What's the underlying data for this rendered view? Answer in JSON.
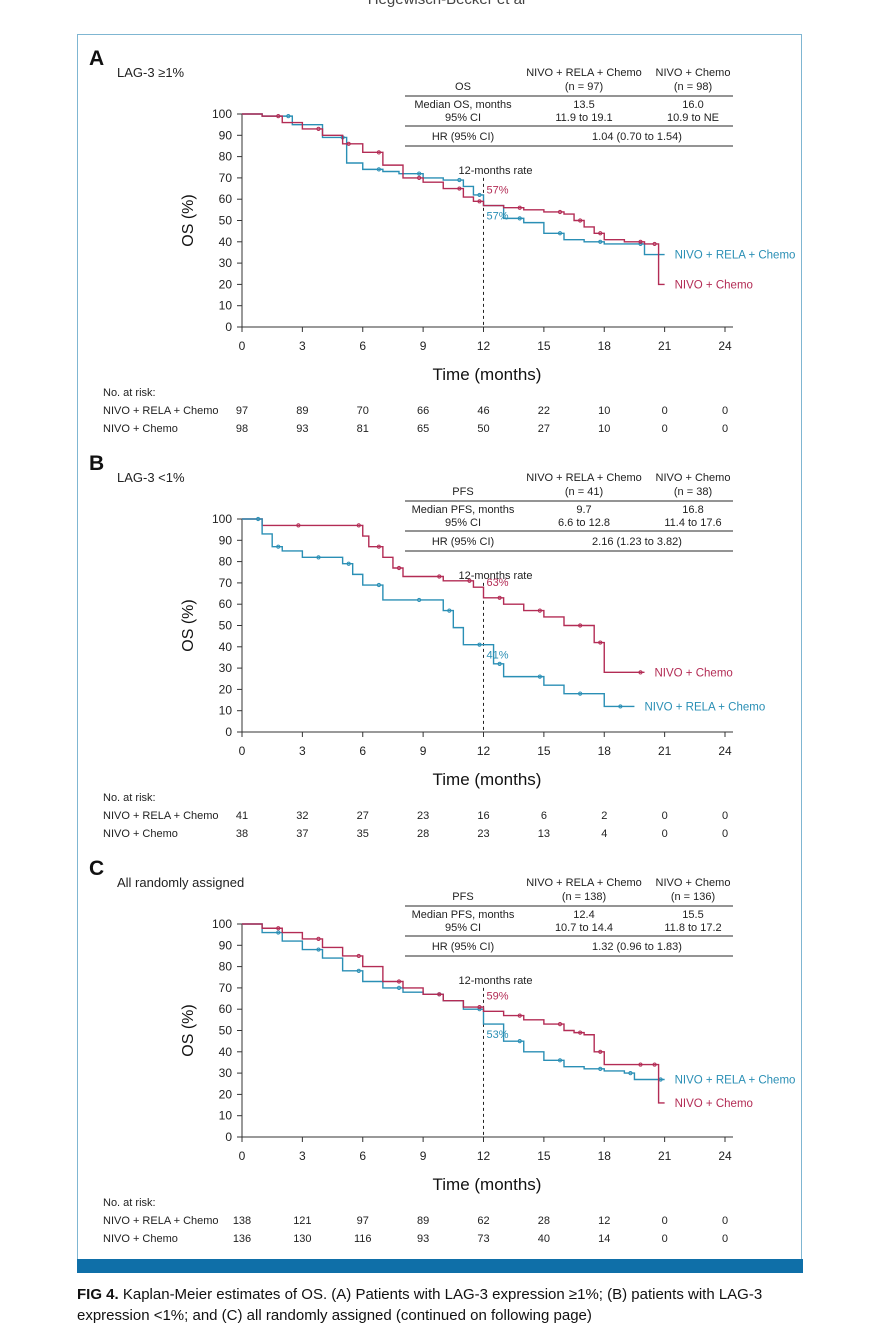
{
  "header": {
    "running_head": "Hegewisch-Becker et al"
  },
  "colors": {
    "nivo_rela_chemo": "#2a8fb5",
    "nivo_chemo": "#b32c55",
    "frame": "#7fb6d2",
    "bar": "#0f6fa8"
  },
  "caption": {
    "label": "FIG 4.",
    "text": "Kaplan-Meier estimates of OS. (A) Patients with LAG-3 expression ≥1%; (B) patients with LAG-3 expression <1%; and (C) all randomly assigned  (continued on following page)"
  },
  "chart_data": [
    {
      "panel": "A",
      "subtitle": "LAG-3 ≥1%",
      "type": "line",
      "xlabel": "Time (months)",
      "ylabel": "OS (%)",
      "xlim": [
        0,
        24
      ],
      "ylim": [
        0,
        100
      ],
      "xticks": [
        "0",
        "3",
        "6",
        "9",
        "12",
        "15",
        "18",
        "21",
        "24"
      ],
      "yticks": [
        "0",
        "10",
        "20",
        "30",
        "40",
        "50",
        "60",
        "70",
        "80",
        "90",
        "100"
      ],
      "rate_label": "12-months rate",
      "table": {
        "metric": "OS",
        "col1_head": "NIVO + RELA + Chemo",
        "col1_n": "(n = 97)",
        "col2_head": "NIVO + Chemo",
        "col2_n": "(n = 98)",
        "row1_label": "Median OS, months",
        "row1_col1": "13.5",
        "row1_col2": "16.0",
        "row2_label": "95% CI",
        "row2_col1": "11.9 to 19.1",
        "row2_col2": "10.9 to NE",
        "row3_label": "HR (95% CI)",
        "row3_value": "1.04 (0.70 to 1.54)"
      },
      "risk_title": "No. at risk:",
      "series": [
        {
          "name": "NIVO + RELA + Chemo",
          "color": "#2a8fb5",
          "rate": "57%",
          "x": [
            0,
            1,
            2.5,
            4,
            5.2,
            6,
            7,
            7.8,
            9,
            10,
            11,
            11.5,
            12,
            13,
            14,
            15,
            16,
            17,
            18,
            19.5,
            20,
            21
          ],
          "y": [
            100,
            99,
            95,
            89,
            77,
            74,
            73,
            72,
            70,
            69,
            66,
            62,
            57,
            51,
            49,
            44,
            41,
            40,
            39,
            39,
            34,
            34
          ],
          "at_risk": [
            "97",
            "89",
            "70",
            "66",
            "46",
            "22",
            "10",
            "0",
            "0"
          ]
        },
        {
          "name": "NIVO + Chemo",
          "color": "#b32c55",
          "rate": "57%",
          "x": [
            0,
            1,
            2,
            3,
            4,
            5,
            5.5,
            6,
            7,
            8,
            9,
            10,
            11,
            11.5,
            12,
            13,
            14,
            15,
            16,
            16.5,
            17,
            17.5,
            18,
            19,
            20,
            20.5,
            20.7,
            21
          ],
          "y": [
            100,
            99,
            96,
            93,
            90,
            86,
            86,
            82,
            76,
            70,
            68,
            65,
            61,
            59,
            57,
            56,
            55,
            54,
            53,
            50,
            47,
            44,
            41,
            40,
            39,
            39,
            20,
            20
          ],
          "at_risk": [
            "98",
            "93",
            "81",
            "65",
            "50",
            "27",
            "10",
            "0",
            "0"
          ]
        }
      ]
    },
    {
      "panel": "B",
      "subtitle": "LAG-3 <1%",
      "type": "line",
      "xlabel": "Time (months)",
      "ylabel": "OS (%)",
      "xlim": [
        0,
        24
      ],
      "ylim": [
        0,
        100
      ],
      "xticks": [
        "0",
        "3",
        "6",
        "9",
        "12",
        "15",
        "18",
        "21",
        "24"
      ],
      "yticks": [
        "0",
        "10",
        "20",
        "30",
        "40",
        "50",
        "60",
        "70",
        "80",
        "90",
        "100"
      ],
      "rate_label": "12-months rate",
      "table": {
        "metric": "PFS",
        "col1_head": "NIVO + RELA + Chemo",
        "col1_n": "(n = 41)",
        "col2_head": "NIVO + Chemo",
        "col2_n": "(n = 38)",
        "row1_label": "Median PFS, months",
        "row1_col1": "9.7",
        "row1_col2": "16.8",
        "row2_label": "95% CI",
        "row2_col1": "6.6 to 12.8",
        "row2_col2": "11.4 to 17.6",
        "row3_label": "HR (95% CI)",
        "row3_value": "2.16 (1.23 to 3.82)"
      },
      "risk_title": "No. at risk:",
      "series": [
        {
          "name": "NIVO + Chemo",
          "color": "#b32c55",
          "rate": "63%",
          "x": [
            0,
            1,
            3,
            5.3,
            6,
            6.3,
            7,
            7.5,
            8,
            9,
            10,
            11,
            11.5,
            12,
            13,
            14,
            15,
            16,
            17,
            17.5,
            18,
            19,
            20
          ],
          "y": [
            100,
            97,
            97,
            97,
            92,
            87,
            82,
            77,
            73,
            73,
            71,
            71,
            68,
            63,
            60,
            57,
            54,
            50,
            50,
            42,
            28,
            28,
            28
          ],
          "at_risk": [
            "38",
            "37",
            "35",
            "28",
            "23",
            "13",
            "4",
            "0",
            "0"
          ]
        },
        {
          "name": "NIVO + RELA + Chemo",
          "color": "#2a8fb5",
          "rate": "41%",
          "x": [
            0,
            0.5,
            1,
            1.5,
            2,
            3,
            4,
            5,
            5.5,
            6,
            7,
            8,
            9,
            10,
            10.5,
            11,
            12,
            12.5,
            13,
            14,
            15,
            16,
            17,
            18,
            19,
            19.5
          ],
          "y": [
            100,
            100,
            93,
            87,
            85,
            82,
            82,
            79,
            74,
            69,
            62,
            62,
            62,
            57,
            49,
            41,
            41,
            32,
            26,
            26,
            22,
            18,
            18,
            12,
            12,
            12
          ],
          "at_risk": [
            "41",
            "32",
            "27",
            "23",
            "16",
            "6",
            "2",
            "0",
            "0"
          ]
        }
      ]
    },
    {
      "panel": "C",
      "subtitle": "All randomly assigned",
      "type": "line",
      "xlabel": "Time (months)",
      "ylabel": "OS (%)",
      "xlim": [
        0,
        24
      ],
      "ylim": [
        0,
        100
      ],
      "xticks": [
        "0",
        "3",
        "6",
        "9",
        "12",
        "15",
        "18",
        "21",
        "24"
      ],
      "yticks": [
        "0",
        "10",
        "20",
        "30",
        "40",
        "50",
        "60",
        "70",
        "80",
        "90",
        "100"
      ],
      "rate_label": "12-months rate",
      "table": {
        "metric": "PFS",
        "col1_head": "NIVO + RELA + Chemo",
        "col1_n": "(n = 138)",
        "col2_head": "NIVO + Chemo",
        "col2_n": "(n = 136)",
        "row1_label": "Median PFS, months",
        "row1_col1": "12.4",
        "row1_col2": "15.5",
        "row2_label": "95% CI",
        "row2_col1": "10.7 to 14.4",
        "row2_col2": "11.8 to 17.2",
        "row3_label": "HR (95% CI)",
        "row3_value": "1.32 (0.96 to 1.83)"
      },
      "risk_title": "No. at risk:",
      "series": [
        {
          "name": "NIVO + RELA + Chemo",
          "color": "#2a8fb5",
          "rate": "53%",
          "x": [
            0,
            1,
            2,
            3,
            4,
            5,
            6,
            7,
            8,
            9,
            10,
            11,
            12,
            13,
            14,
            15,
            16,
            17,
            18,
            19,
            19.5,
            20,
            21
          ],
          "y": [
            100,
            96,
            92,
            88,
            84,
            78,
            73,
            70,
            68,
            67,
            64,
            60,
            53,
            45,
            40,
            36,
            33,
            32,
            31,
            30,
            27,
            27,
            27
          ],
          "at_risk": [
            "138",
            "121",
            "97",
            "89",
            "62",
            "28",
            "12",
            "0",
            "0"
          ]
        },
        {
          "name": "NIVO + Chemo",
          "color": "#b32c55",
          "rate": "59%",
          "x": [
            0,
            1,
            2,
            3,
            4,
            5,
            6,
            7,
            8,
            9,
            10,
            11,
            12,
            13,
            14,
            15,
            16,
            16.5,
            17,
            17.5,
            18,
            19,
            20,
            20.5,
            20.7,
            21
          ],
          "y": [
            100,
            98,
            96,
            93,
            89,
            85,
            80,
            73,
            70,
            67,
            64,
            61,
            59,
            57,
            55,
            53,
            50,
            49,
            48,
            40,
            34,
            34,
            34,
            34,
            16,
            16
          ],
          "at_risk": [
            "136",
            "130",
            "116",
            "93",
            "73",
            "40",
            "14",
            "0",
            "0"
          ]
        }
      ]
    }
  ]
}
